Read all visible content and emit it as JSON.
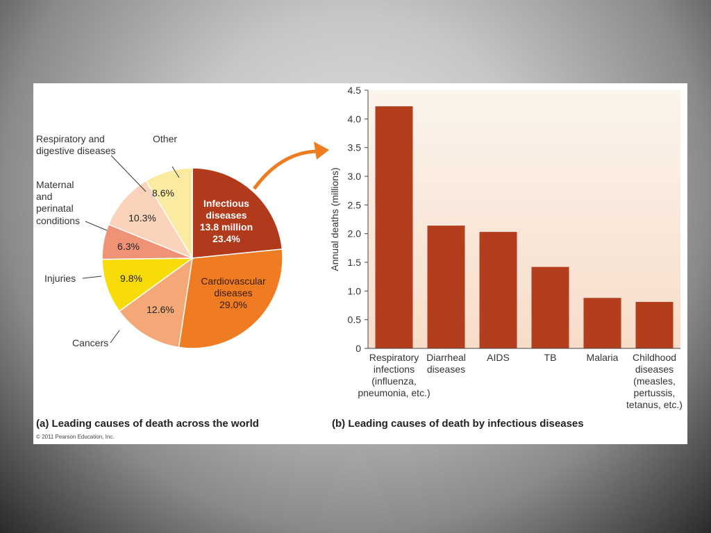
{
  "colors": {
    "infectious": "#b23a1c",
    "cardiovascular": "#ef7c22",
    "cancers": "#f5a877",
    "injuries": "#f8dc0a",
    "maternal": "#ef9377",
    "respiratory_digestive": "#fbd3bb",
    "other": "#fbeba0",
    "bar": "#b23e1e",
    "plot_bg_top": "#fbf4ec",
    "plot_bg_bottom": "#f7dcc9",
    "arrow": "#ee7d22"
  },
  "pie": {
    "caption": "(a) Leading causes of death across the world",
    "copyright": "© 2011 Pearson Education, Inc.",
    "labels": {
      "other": "Other",
      "resp_line1": "Respiratory and",
      "resp_line2": "digestive diseases",
      "mat_line1": "Maternal",
      "mat_line2": "and",
      "mat_line3": "perinatal",
      "mat_line4": "conditions",
      "injuries": "Injuries",
      "cancers": "Cancers",
      "infectious_line1": "Infectious",
      "infectious_line2": "diseases",
      "infectious_line3": "13.8 million",
      "infectious_line4": "23.4%",
      "cardio_line1": "Cardiovascular",
      "cardio_line2": "diseases",
      "cardio_line3": "29.0%",
      "pct_other": "8.6%",
      "pct_resp": "10.3%",
      "pct_maternal": "6.3%",
      "pct_injuries": "9.8%",
      "pct_cancers": "12.6%"
    }
  },
  "bars": {
    "caption": "(b) Leading causes of death by infectious diseases",
    "ylabel": "Annual deaths (millions)",
    "yticks": [
      "0",
      "0.5",
      "1.0",
      "1.5",
      "2.0",
      "2.5",
      "3.0",
      "3.5",
      "4.0",
      "4.5"
    ],
    "category_lines": [
      [
        "Respiratory",
        "infections",
        "(influenza,",
        "pneumonia, etc.)"
      ],
      [
        "Diarrheal",
        "diseases"
      ],
      [
        "AIDS"
      ],
      [
        "TB"
      ],
      [
        "Malaria"
      ],
      [
        "Childhood",
        "diseases",
        "(measles,",
        "pertussis,",
        "tetanus, etc.)"
      ]
    ]
  },
  "chart_data": [
    {
      "type": "pie",
      "title": "(a) Leading causes of death across the world",
      "slices": [
        {
          "label": "Infectious diseases",
          "value": 23.4,
          "note": "13.8 million"
        },
        {
          "label": "Cardiovascular diseases",
          "value": 29.0
        },
        {
          "label": "Cancers",
          "value": 12.6
        },
        {
          "label": "Injuries",
          "value": 9.8
        },
        {
          "label": "Maternal and perinatal conditions",
          "value": 6.3
        },
        {
          "label": "Respiratory and digestive diseases",
          "value": 10.3
        },
        {
          "label": "Other",
          "value": 8.6
        }
      ]
    },
    {
      "type": "bar",
      "title": "(b) Leading causes of death by infectious diseases",
      "categories": [
        "Respiratory infections (influenza, pneumonia, etc.)",
        "Diarrheal diseases",
        "AIDS",
        "TB",
        "Malaria",
        "Childhood diseases (measles, pertussis, tetanus, etc.)"
      ],
      "values": [
        4.22,
        2.14,
        2.03,
        1.42,
        0.88,
        0.81
      ],
      "ylabel": "Annual deaths (millions)",
      "ylim": [
        0,
        4.5
      ],
      "grid": false
    }
  ]
}
